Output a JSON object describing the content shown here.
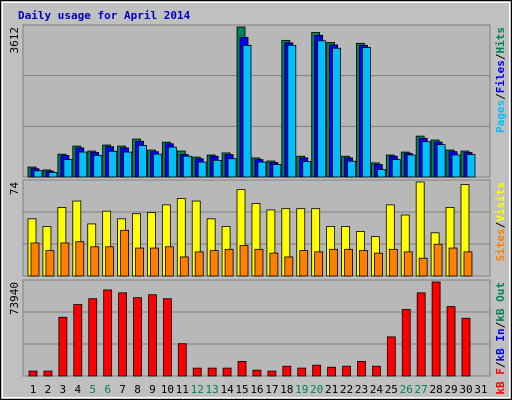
{
  "title": "Daily usage for April 2014",
  "legend_separator": "/",
  "chart_data": [
    {
      "type": "bar",
      "ylim": [
        0,
        3612
      ],
      "yticks": [
        3612
      ],
      "series": [
        {
          "name": "Hits",
          "color": "#00805c",
          "values": [
            240,
            170,
            550,
            745,
            625,
            770,
            745,
            915,
            650,
            840,
            625,
            480,
            530,
            580,
            3612,
            460,
            385,
            3290,
            500,
            3480,
            3240,
            500,
            3220,
            340,
            530,
            600,
            985,
            890,
            650,
            625,
            null
          ]
        },
        {
          "name": "Files",
          "color": "#0000ff",
          "values": [
            200,
            140,
            520,
            700,
            590,
            730,
            700,
            860,
            610,
            800,
            540,
            440,
            500,
            540,
            3360,
            420,
            350,
            3230,
            460,
            3410,
            3180,
            460,
            3170,
            300,
            500,
            570,
            930,
            840,
            610,
            590,
            null
          ]
        },
        {
          "name": "Pages",
          "color": "#00c0ff",
          "values": [
            150,
            110,
            420,
            600,
            520,
            620,
            600,
            760,
            550,
            720,
            500,
            360,
            400,
            440,
            3170,
            360,
            300,
            3170,
            370,
            3280,
            3100,
            380,
            3120,
            180,
            420,
            530,
            850,
            780,
            530,
            540,
            null
          ]
        }
      ]
    },
    {
      "type": "bar",
      "ylim": [
        0,
        74
      ],
      "yticks": [
        74
      ],
      "series": [
        {
          "name": "Visits",
          "color": "#ffff00",
          "values": [
            45,
            39,
            54,
            59,
            41,
            51,
            45,
            49,
            50,
            56,
            61,
            59,
            45,
            39,
            68,
            57,
            52,
            53,
            53,
            53,
            39,
            39,
            35,
            31,
            56,
            48,
            74,
            34,
            54,
            72,
            null
          ]
        },
        {
          "name": "Sites",
          "color": "#ff8000",
          "values": [
            26,
            20,
            26,
            27,
            23,
            23,
            36,
            22,
            22,
            23,
            15,
            19,
            20,
            21,
            24,
            21,
            18,
            15,
            20,
            19,
            21,
            21,
            20,
            18,
            21,
            19,
            14,
            25,
            22,
            19,
            null
          ]
        }
      ]
    },
    {
      "type": "bar",
      "ylim": [
        0,
        73940
      ],
      "yticks": [
        73940
      ],
      "categories": [
        "1",
        "2",
        "3",
        "4",
        "5",
        "6",
        "7",
        "8",
        "9",
        "10",
        "11",
        "12",
        "13",
        "14",
        "15",
        "16",
        "17",
        "18",
        "19",
        "20",
        "21",
        "22",
        "23",
        "24",
        "25",
        "26",
        "27",
        "28",
        "29",
        "30",
        "31"
      ],
      "label_color": "#000000",
      "weekend_color": "#00805c",
      "weekends": [
        "5",
        "6",
        "12",
        "13",
        "19",
        "20",
        "26",
        "27"
      ],
      "series": [
        {
          "name": "kB F",
          "color": "#ff0000",
          "values": [
            3850,
            3850,
            46200,
            56200,
            60800,
            67700,
            65400,
            61600,
            63900,
            60800,
            25400,
            6200,
            6200,
            6200,
            11500,
            4600,
            3850,
            7700,
            6200,
            8500,
            6900,
            7700,
            11500,
            7700,
            30800,
            52300,
            65400,
            73940,
            54600,
            45400,
            null
          ]
        }
      ],
      "legend_extra": [
        {
          "name": "kB In",
          "color": "#0000ff"
        },
        {
          "name": "kB Out",
          "color": "#00805c"
        }
      ]
    }
  ]
}
